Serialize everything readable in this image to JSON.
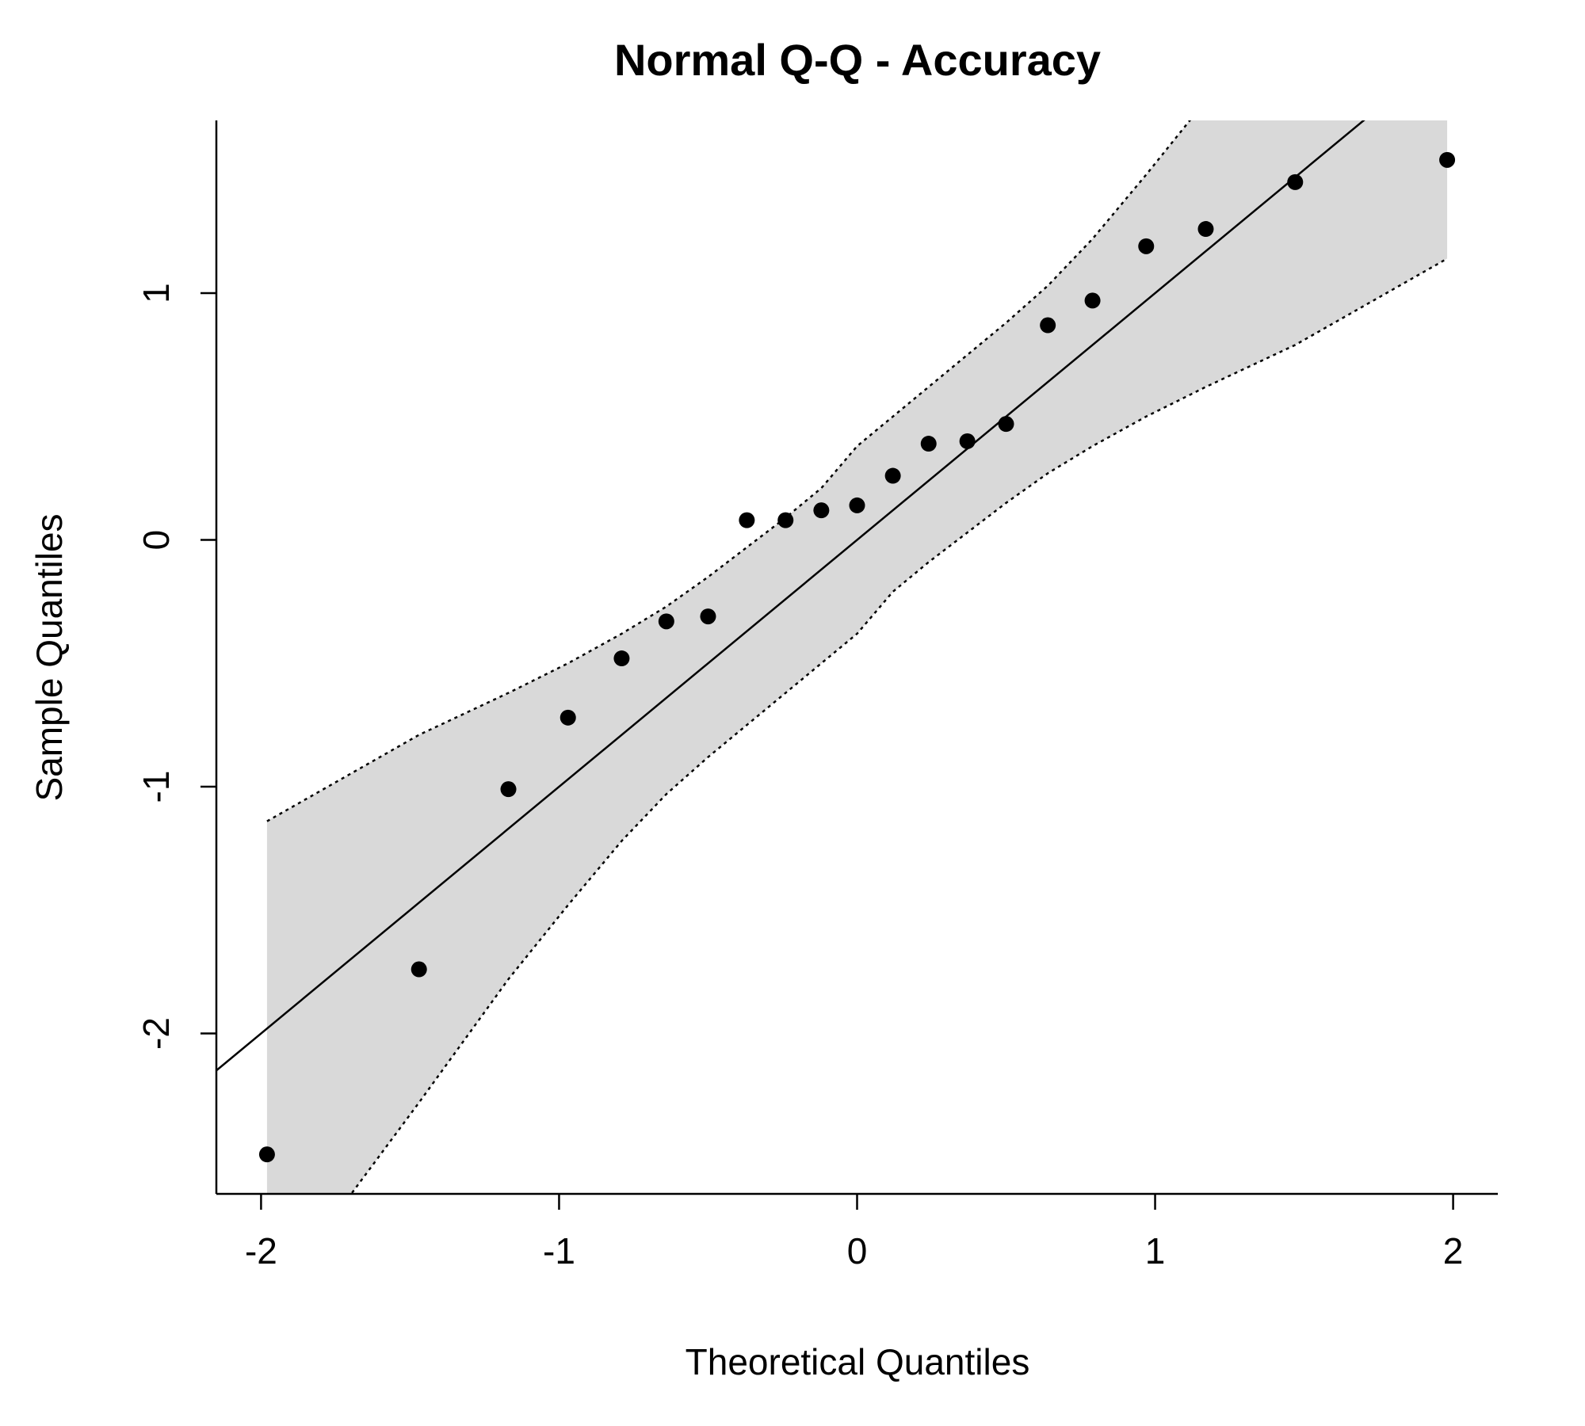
{
  "chart_data": {
    "type": "scatter",
    "title": "Normal Q-Q - Accuracy",
    "xlabel": "Theoretical Quantiles",
    "ylabel": "Sample Quantiles",
    "xlim": [
      -2.15,
      2.15
    ],
    "ylim": [
      -2.65,
      1.7
    ],
    "x_ticks": [
      -2,
      -1,
      0,
      1,
      2
    ],
    "y_ticks": [
      -2,
      -1,
      0,
      1
    ],
    "x_tick_labels": [
      "-2",
      "-1",
      "0",
      "1",
      "2"
    ],
    "y_tick_labels": [
      "-2",
      "-1",
      "0",
      "1"
    ],
    "grid": false,
    "points": [
      {
        "x": -1.98,
        "y": -2.49
      },
      {
        "x": -1.47,
        "y": -1.74
      },
      {
        "x": -1.17,
        "y": -1.01
      },
      {
        "x": -0.97,
        "y": -0.72
      },
      {
        "x": -0.79,
        "y": -0.48
      },
      {
        "x": -0.64,
        "y": -0.33
      },
      {
        "x": -0.5,
        "y": -0.31
      },
      {
        "x": -0.37,
        "y": 0.08
      },
      {
        "x": -0.24,
        "y": 0.08
      },
      {
        "x": -0.12,
        "y": 0.12
      },
      {
        "x": 0.0,
        "y": 0.14
      },
      {
        "x": 0.12,
        "y": 0.26
      },
      {
        "x": 0.24,
        "y": 0.39
      },
      {
        "x": 0.37,
        "y": 0.4
      },
      {
        "x": 0.5,
        "y": 0.47
      },
      {
        "x": 0.64,
        "y": 0.87
      },
      {
        "x": 0.79,
        "y": 0.97
      },
      {
        "x": 0.97,
        "y": 1.19
      },
      {
        "x": 1.17,
        "y": 1.26
      },
      {
        "x": 1.47,
        "y": 1.45
      },
      {
        "x": 1.98,
        "y": 1.54
      }
    ],
    "reference_line": {
      "intercept": 0.0,
      "slope": 1.0
    },
    "confidence_band": {
      "x": [
        -1.98,
        -1.47,
        -1.17,
        -0.97,
        -0.79,
        -0.64,
        -0.5,
        -0.37,
        -0.24,
        -0.12,
        0.0,
        0.12,
        0.24,
        0.37,
        0.5,
        0.64,
        0.79,
        0.97,
        1.17,
        1.47,
        1.98
      ],
      "upper": [
        -1.14,
        -0.79,
        -0.62,
        -0.5,
        -0.38,
        -0.27,
        -0.15,
        -0.03,
        0.09,
        0.21,
        0.38,
        0.5,
        0.62,
        0.75,
        0.88,
        1.03,
        1.22,
        1.48,
        1.78,
        2.28,
        3.11
      ],
      "lower": [
        -3.11,
        -2.28,
        -1.78,
        -1.48,
        -1.22,
        -1.03,
        -0.88,
        -0.75,
        -0.62,
        -0.5,
        -0.38,
        -0.21,
        -0.09,
        0.03,
        0.15,
        0.27,
        0.38,
        0.5,
        0.62,
        0.79,
        1.14
      ]
    },
    "colors": {
      "points": "#000000",
      "band": "#d9d9d9",
      "line": "#000000"
    }
  }
}
